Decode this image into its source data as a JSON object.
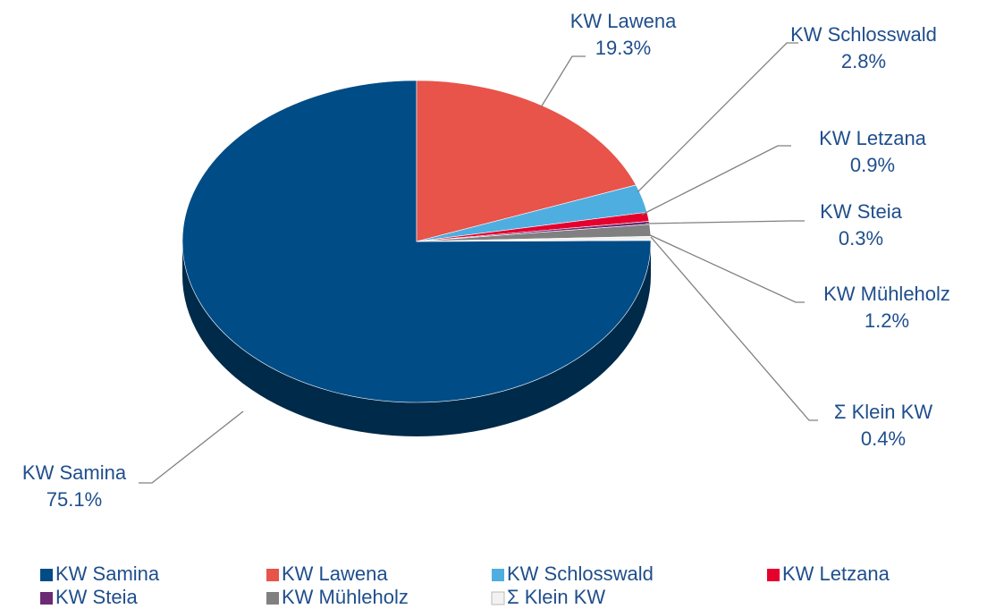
{
  "chart_data": {
    "type": "pie",
    "categories": [
      "KW Samina",
      "KW Lawena",
      "KW Schlosswald",
      "KW Letzana",
      "KW Steia",
      "KW Mühleholz",
      "Σ Klein KW"
    ],
    "values": [
      75.1,
      19.3,
      2.8,
      0.9,
      0.3,
      1.2,
      0.4
    ],
    "value_labels": [
      "75.1%",
      "19.3%",
      "2.8%",
      "0.9%",
      "0.3%",
      "1.2%",
      "0.4%"
    ],
    "colors": [
      "#004c86",
      "#e8534a",
      "#4eaee0",
      "#e5002d",
      "#6a2a74",
      "#808080",
      "#f2f2f2"
    ],
    "legend": "bottom"
  }
}
